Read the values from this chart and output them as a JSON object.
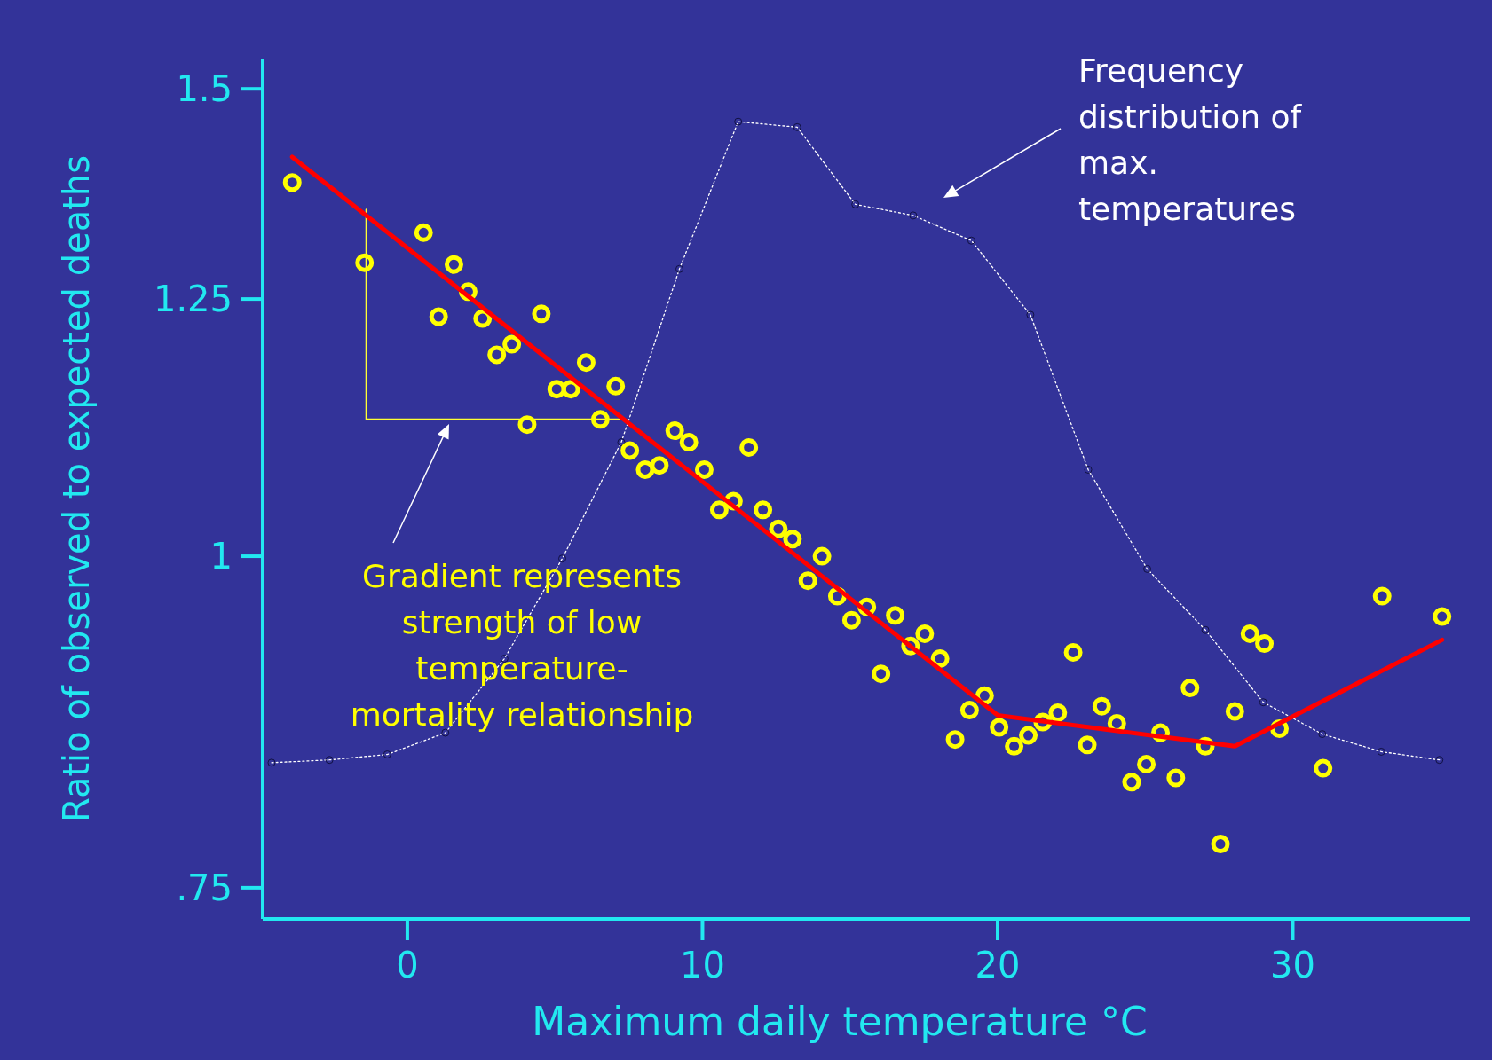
{
  "chart_data": {
    "type": "scatter",
    "xlabel": "Maximum daily temperature °C",
    "ylabel": "Ratio of observed to expected deaths",
    "log": "y",
    "grid": false,
    "xlim": [
      -4.9,
      36
    ],
    "xticks": [
      0,
      10,
      20,
      30
    ],
    "ylim": [
      0.73,
      1.54
    ],
    "yticks": [
      {
        "value": 0.75,
        "label": ".75"
      },
      1,
      1.25,
      1.5
    ],
    "series": [
      {
        "type": "line",
        "color": "#ffffff",
        "line_style": "dotted",
        "marker": "circle",
        "x": [
          -4.6,
          -2.64,
          -0.68,
          1.29,
          3.29,
          5.25,
          7.25,
          9.22,
          11.21,
          13.21,
          15.18,
          17.14,
          19.11,
          21.11,
          23.07,
          25.07,
          27.04,
          29.0,
          31.0,
          33.0,
          34.97
        ],
        "values": [
          0.836,
          0.838,
          0.842,
          0.858,
          0.915,
          0.998,
          1.104,
          1.283,
          1.458,
          1.451,
          1.357,
          1.344,
          1.315,
          1.233,
          1.078,
          0.989,
          0.938,
          0.881,
          0.857,
          0.844,
          0.838
        ]
      },
      {
        "type": "line",
        "color": "#ffff33",
        "line_style": "solid",
        "marker": "none",
        "x": [
          -1.39,
          -1.39,
          7.32
        ],
        "values": [
          1.351,
          1.126,
          1.126
        ]
      },
      {
        "color": "#ffff00",
        "marker": "circle",
        "x": [
          -3.9,
          -1.45,
          0.55,
          1.06,
          1.58,
          2.06,
          2.55,
          3.03,
          3.54,
          4.06,
          4.54,
          5.06,
          5.54,
          6.06,
          6.54,
          7.06,
          7.54,
          8.06,
          8.54,
          9.06,
          9.54,
          10.06,
          10.57,
          11.05,
          11.57,
          12.05,
          12.57,
          13.05,
          13.57,
          14.05,
          14.57,
          15.05,
          15.57,
          16.05,
          16.53,
          17.05,
          17.53,
          18.05,
          18.56,
          19.05,
          19.56,
          20.05,
          20.56,
          21.04,
          21.53,
          22.04,
          22.56,
          23.04,
          23.53,
          24.04,
          24.54,
          25.04,
          25.52,
          26.04,
          26.52,
          27.04,
          27.55,
          28.04,
          28.55,
          29.04,
          29.55,
          31.03,
          33.03,
          35.06
        ],
        "values": [
          1.383,
          1.29,
          1.324,
          1.231,
          1.288,
          1.258,
          1.229,
          1.191,
          1.202,
          1.121,
          1.234,
          1.156,
          1.156,
          1.183,
          1.126,
          1.159,
          1.096,
          1.078,
          1.082,
          1.115,
          1.104,
          1.078,
          1.041,
          1.049,
          1.099,
          1.041,
          1.024,
          1.015,
          0.979,
          1.0,
          0.966,
          0.946,
          0.957,
          0.903,
          0.95,
          0.925,
          0.935,
          0.915,
          0.853,
          0.875,
          0.886,
          0.862,
          0.848,
          0.856,
          0.866,
          0.873,
          0.92,
          0.849,
          0.878,
          0.865,
          0.822,
          0.835,
          0.858,
          0.825,
          0.892,
          0.848,
          0.779,
          0.874,
          0.935,
          0.927,
          0.861,
          0.832,
          0.966,
          0.949
        ]
      },
      {
        "type": "line",
        "color": "#ff0000",
        "line_style": "solid",
        "marker": "none",
        "x": [
          -3.9,
          20.01,
          28.04,
          35.06
        ],
        "values": [
          1.414,
          0.871,
          0.848,
          0.93
        ]
      }
    ],
    "annotations": [
      "Frequency\ndistribution of\nmax.\ntemperatures",
      "Gradient represents\nstrength of low\ntemperature-\nmortality relationship"
    ]
  }
}
